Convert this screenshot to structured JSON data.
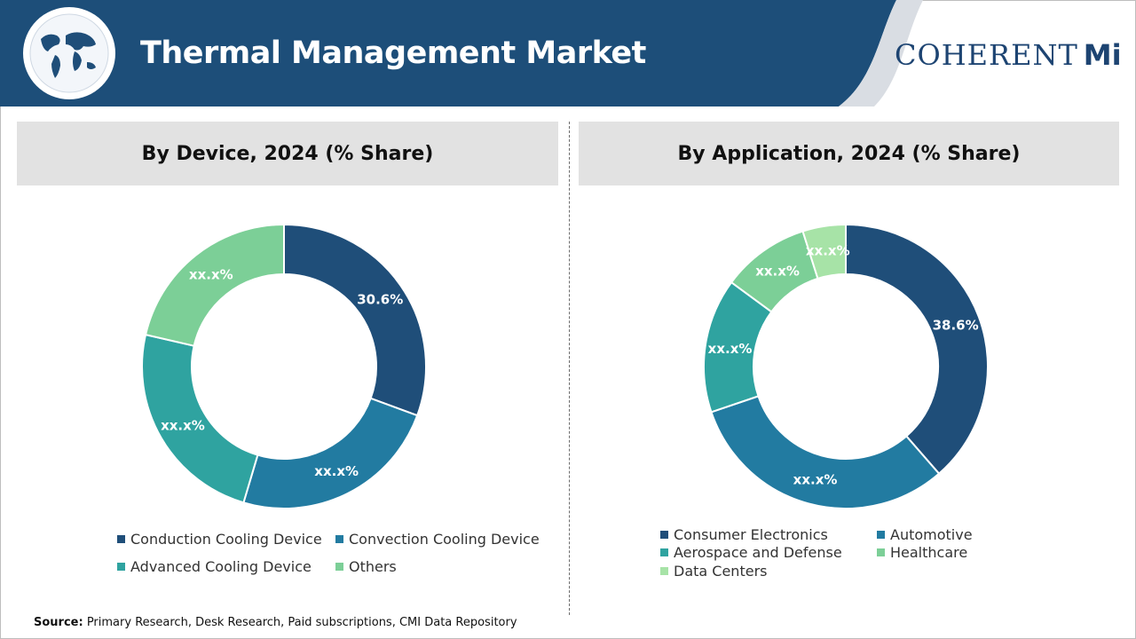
{
  "header": {
    "title": "Thermal Management Market",
    "logo_main": "COHERENT",
    "logo_suffix": "Mi"
  },
  "colors": {
    "header_bg": "#1d4e79",
    "panel_head_bg": "#e2e2e2",
    "series": [
      "#1f4e79",
      "#227ba1",
      "#2fa3a0",
      "#7ccf97",
      "#a7e3a7"
    ]
  },
  "chart_data": [
    {
      "type": "pie",
      "donut": true,
      "title": "By Device, 2024 (% Share)",
      "categories": [
        "Conduction Cooling Device",
        "Convection Cooling Device",
        "Advanced Cooling Device",
        "Others"
      ],
      "values": [
        30.6,
        24.0,
        24.0,
        21.4
      ],
      "labels": [
        "30.6%",
        "xx.x%",
        "xx.x%",
        "xx.x%"
      ],
      "legend": "bottom"
    },
    {
      "type": "pie",
      "donut": true,
      "title": "By Application, 2024 (% Share)",
      "categories": [
        "Consumer Electronics",
        "Automotive",
        "Aerospace and Defense",
        "Healthcare",
        "Data Centers"
      ],
      "values": [
        38.6,
        31.2,
        15.3,
        10.0,
        4.9
      ],
      "labels": [
        "38.6%",
        "xx.x%",
        "xx.x%",
        "xx.x%",
        "xx.x%"
      ],
      "legend": "bottom"
    }
  ],
  "source": {
    "label": "Source:",
    "text": " Primary Research, Desk Research, Paid subscriptions, CMI Data Repository"
  }
}
